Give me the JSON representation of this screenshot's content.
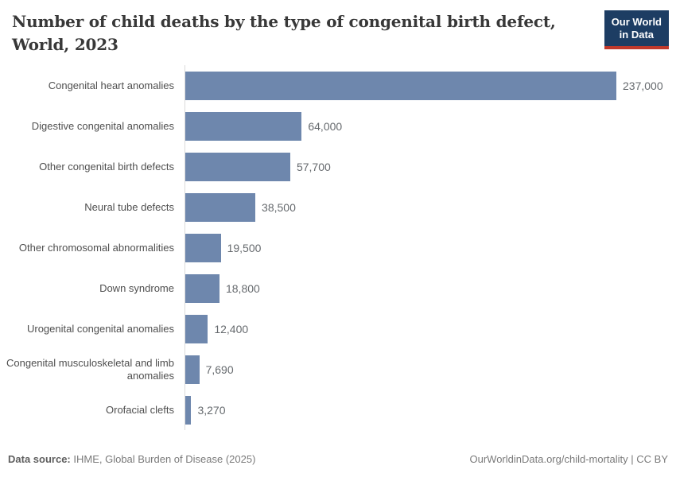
{
  "header": {
    "title": "Number of child deaths by the type of congenital birth defect, World, 2023",
    "logo": {
      "line1": "Our World",
      "line2": "in Data"
    }
  },
  "chart_data": {
    "type": "bar",
    "orientation": "horizontal",
    "title": "Number of child deaths by the type of congenital birth defect, World, 2023",
    "categories": [
      "Congenital heart anomalies",
      "Digestive congenital anomalies",
      "Other congenital birth defects",
      "Neural tube defects",
      "Other chromosomal abnormalities",
      "Down syndrome",
      "Urogenital congenital anomalies",
      "Congenital musculoskeletal and limb anomalies",
      "Orofacial clefts"
    ],
    "values": [
      237000,
      64000,
      57700,
      38500,
      19500,
      18800,
      12400,
      7690,
      3270
    ],
    "value_labels": [
      "237,000",
      "64,000",
      "57,700",
      "38,500",
      "19,500",
      "18,800",
      "12,400",
      "7,690",
      "3,270"
    ],
    "xlim": [
      0,
      237000
    ],
    "grid": false,
    "legend": "none",
    "bar_color": "#6e87ad",
    "axis_color": "#dbdbdb"
  },
  "footer": {
    "source_label": "Data source:",
    "source_text": " IHME, Global Burden of Disease (2025)",
    "credit": "OurWorldinData.org/child-mortality | CC BY"
  },
  "colors": {
    "logo_background": "#1d3d63",
    "logo_underline": "#c0392b",
    "bar": "#6e87ad",
    "axis": "#dbdbdb"
  }
}
